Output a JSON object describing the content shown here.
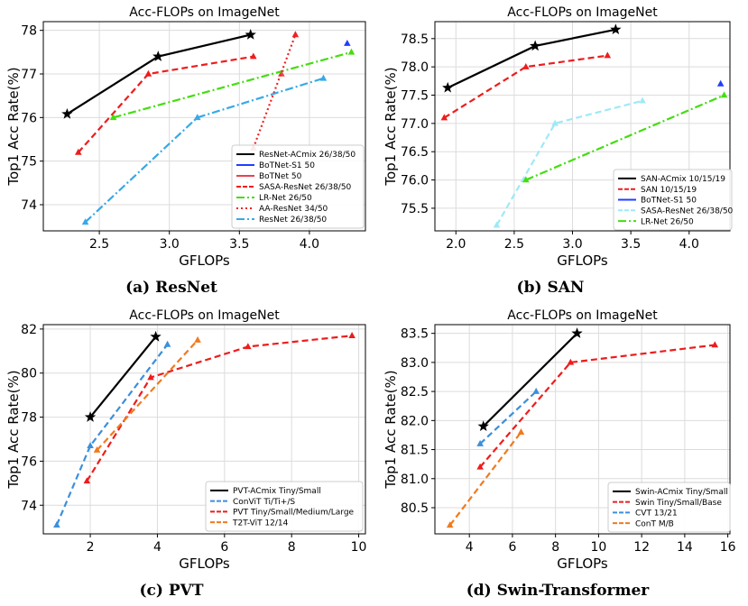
{
  "chart_data": [
    {
      "type": "line",
      "title": "Acc-FLOPs on ImageNet",
      "xlabel": "GFLOPs",
      "ylabel": "Top1 Acc Rate(%)",
      "caption": "(a) ResNet",
      "xlim": [
        2.1,
        4.4
      ],
      "ylim": [
        73.4,
        78.2
      ],
      "xticks": [
        2.5,
        3.0,
        3.5,
        4.0
      ],
      "xtick_labels": [
        "2.5",
        "3.0",
        "3.5",
        "4.0"
      ],
      "yticks": [
        74,
        75,
        76,
        77,
        78
      ],
      "ytick_labels": [
        "74",
        "75",
        "76",
        "77",
        "78"
      ],
      "grid": true,
      "legend_position": "lower-right",
      "series": [
        {
          "name": "ResNet-ACmix 26/38/50",
          "color": "#000000",
          "dash": "solid",
          "marker": "star",
          "x": [
            2.27,
            2.92,
            3.58
          ],
          "y": [
            76.08,
            77.4,
            77.9
          ]
        },
        {
          "name": "BoTNet-S1 50",
          "color": "#1f3fff",
          "dash": "solid",
          "marker": "triangle",
          "x": [
            4.27
          ],
          "y": [
            77.7
          ]
        },
        {
          "name": "BoTNet 50",
          "color": "#e8424f",
          "dash": "solid",
          "marker": "triangle",
          "x": [
            3.8
          ],
          "y": [
            77.0
          ]
        },
        {
          "name": "SASA-ResNet 26/38/50",
          "color": "#ee1c1c",
          "dash": "dashed",
          "marker": "triangle",
          "x": [
            2.35,
            2.85,
            3.6
          ],
          "y": [
            75.2,
            77.0,
            77.4
          ]
        },
        {
          "name": "LR-Net 26/50",
          "color": "#44dd11",
          "dash": "dashdot",
          "marker": "triangle",
          "x": [
            2.6,
            4.3
          ],
          "y": [
            76.0,
            77.5
          ]
        },
        {
          "name": "AA-ResNet 34/50",
          "color": "#ee2222",
          "dash": "dotted",
          "marker": "triangle",
          "x": [
            3.6,
            3.9
          ],
          "y": [
            75.3,
            77.9
          ]
        },
        {
          "name": "ResNet 26/38/50",
          "color": "#37a9e6",
          "dash": "dashdot",
          "marker": "triangle",
          "x": [
            2.4,
            3.2,
            4.1
          ],
          "y": [
            73.6,
            76.0,
            76.9
          ]
        }
      ]
    },
    {
      "type": "line",
      "title": "Acc-FLOPs on ImageNet",
      "xlabel": "GFLOPs",
      "ylabel": "Top1 Acc Rate(%)",
      "caption": "(b) SAN",
      "xlim": [
        1.82,
        4.35
      ],
      "ylim": [
        75.1,
        78.8
      ],
      "xticks": [
        2.0,
        2.5,
        3.0,
        3.5,
        4.0
      ],
      "xtick_labels": [
        "2.0",
        "2.5",
        "3.0",
        "3.5",
        "4.0"
      ],
      "yticks": [
        75.5,
        76.0,
        76.5,
        77.0,
        77.5,
        78.0,
        78.5
      ],
      "ytick_labels": [
        "75.5",
        "76.0",
        "76.5",
        "77.0",
        "77.5",
        "78.0",
        "78.5"
      ],
      "grid": true,
      "legend_position": "lower-right",
      "series": [
        {
          "name": "SAN-ACmix 10/15/19",
          "color": "#000000",
          "dash": "solid",
          "marker": "star",
          "x": [
            1.93,
            2.68,
            3.37
          ],
          "y": [
            77.63,
            78.37,
            78.66
          ]
        },
        {
          "name": "SAN 10/15/19",
          "color": "#ee1c1c",
          "dash": "dashed",
          "marker": "triangle",
          "x": [
            1.9,
            2.6,
            3.3
          ],
          "y": [
            77.1,
            78.0,
            78.2
          ]
        },
        {
          "name": "BoTNet-S1 50",
          "color": "#1f3fff",
          "dash": "solid",
          "marker": "triangle",
          "x": [
            4.27
          ],
          "y": [
            77.7
          ]
        },
        {
          "name": "SASA-ResNet 26/38/50",
          "color": "#9fe9f7",
          "dash": "dashed",
          "marker": "triangle",
          "x": [
            2.35,
            2.85,
            3.6
          ],
          "y": [
            75.2,
            77.0,
            77.4
          ]
        },
        {
          "name": "LR-Net 26/50",
          "color": "#44dd11",
          "dash": "dashdot",
          "marker": "triangle",
          "x": [
            2.6,
            4.3
          ],
          "y": [
            76.0,
            77.5
          ]
        }
      ]
    },
    {
      "type": "line",
      "title": "Acc-FLOPs on ImageNet",
      "xlabel": "GFLOPs",
      "ylabel": "Top1 Acc Rate(%)",
      "caption": "(c) PVT",
      "xlim": [
        0.6,
        10.2
      ],
      "ylim": [
        72.7,
        82.2
      ],
      "xticks": [
        2,
        4,
        6,
        8,
        10
      ],
      "xtick_labels": [
        "2",
        "4",
        "6",
        "8",
        "10"
      ],
      "yticks": [
        74,
        76,
        78,
        80,
        82
      ],
      "ytick_labels": [
        "74",
        "76",
        "78",
        "80",
        "82"
      ],
      "grid": true,
      "legend_position": "lower-right",
      "series": [
        {
          "name": "PVT-ACmix Tiny/Small",
          "color": "#000000",
          "dash": "solid",
          "marker": "star",
          "x": [
            2.0,
            3.95
          ],
          "y": [
            78.0,
            81.65
          ]
        },
        {
          "name": "ConViT Ti/Ti+/S",
          "color": "#3c8fdb",
          "dash": "dashed",
          "marker": "triangle",
          "x": [
            1.0,
            2.0,
            4.3
          ],
          "y": [
            73.1,
            76.7,
            81.3
          ]
        },
        {
          "name": "PVT Tiny/Small/Medium/Large",
          "color": "#ee1c1c",
          "dash": "dashed",
          "marker": "triangle",
          "x": [
            1.9,
            3.8,
            6.7,
            9.8
          ],
          "y": [
            75.1,
            79.8,
            81.2,
            81.7
          ]
        },
        {
          "name": "T2T-ViT 12/14",
          "color": "#f07a1e",
          "dash": "dashed",
          "marker": "triangle",
          "x": [
            2.2,
            5.2
          ],
          "y": [
            76.5,
            81.5
          ]
        }
      ]
    },
    {
      "type": "line",
      "title": "Acc-FLOPs on ImageNet",
      "xlabel": "GFLOPs",
      "ylabel": "Top1 Acc Rate(%)",
      "caption": "(d) Swin-Transformer",
      "xlim": [
        2.4,
        16.1
      ],
      "ylim": [
        80.05,
        83.65
      ],
      "xticks": [
        4,
        6,
        8,
        10,
        12,
        14,
        16
      ],
      "xtick_labels": [
        "4",
        "6",
        "8",
        "10",
        "12",
        "14",
        "16"
      ],
      "yticks": [
        80.5,
        81.0,
        81.5,
        82.0,
        82.5,
        83.0,
        83.5
      ],
      "ytick_labels": [
        "80.5",
        "81.0",
        "81.5",
        "82.0",
        "82.5",
        "83.0",
        "83.5"
      ],
      "grid": true,
      "legend_position": "lower-right",
      "series": [
        {
          "name": "Swin-ACmix Tiny/Small",
          "color": "#000000",
          "dash": "solid",
          "marker": "star",
          "x": [
            4.65,
            9.0
          ],
          "y": [
            81.9,
            83.5
          ]
        },
        {
          "name": "Swin Tiny/Small/Base",
          "color": "#ee1c1c",
          "dash": "dashed",
          "marker": "triangle",
          "x": [
            4.5,
            8.7,
            15.4
          ],
          "y": [
            81.2,
            83.0,
            83.3
          ]
        },
        {
          "name": "CVT 13/21",
          "color": "#3c8fdb",
          "dash": "dashed",
          "marker": "triangle",
          "x": [
            4.5,
            7.1
          ],
          "y": [
            81.6,
            82.5
          ]
        },
        {
          "name": "ConT M/B",
          "color": "#f07a1e",
          "dash": "dashed",
          "marker": "triangle",
          "x": [
            3.1,
            6.4
          ],
          "y": [
            80.2,
            81.8
          ]
        }
      ]
    }
  ]
}
